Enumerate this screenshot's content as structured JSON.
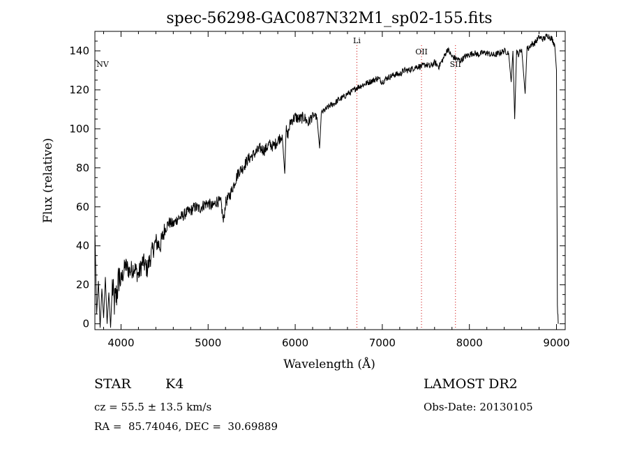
{
  "chart_data": {
    "type": "line",
    "title": "spec-56298-GAC087N32M1_sp02-155.fits",
    "xlabel": "Wavelength (Å)",
    "ylabel": "Flux (relative)",
    "xlim": [
      3700,
      9100
    ],
    "ylim": [
      -3,
      150
    ],
    "x_ticks": [
      4000,
      5000,
      6000,
      7000,
      8000,
      9000
    ],
    "x_tick_labels": [
      "4000",
      "5000",
      "6000",
      "7000",
      "8000",
      "9000"
    ],
    "y_ticks": [
      0,
      20,
      40,
      60,
      80,
      100,
      120,
      140
    ],
    "y_tick_labels": [
      "0",
      "20",
      "40",
      "60",
      "80",
      "100",
      "120",
      "140"
    ],
    "grid": false,
    "line_color": "#000000",
    "marker_color": "#cc0000",
    "line_markers": [
      {
        "label": "NV",
        "wavelength": 3710,
        "dashed": false
      },
      {
        "label": "Li",
        "wavelength": 6708,
        "dashed": true
      },
      {
        "label": "OII",
        "wavelength": 7450,
        "dashed": true
      },
      {
        "label": "SII",
        "wavelength": 7840,
        "dashed": true
      }
    ],
    "series": [
      {
        "x": [
          3700,
          3720,
          3740,
          3760,
          3780,
          3800,
          3820,
          3840,
          3860,
          3880,
          3900,
          3920,
          3950,
          3980,
          4000,
          4050,
          4100,
          4150,
          4200,
          4250,
          4300,
          4350,
          4400,
          4450,
          4500,
          4550,
          4600,
          4650,
          4700,
          4750,
          4800,
          4850,
          4900,
          4950,
          5000,
          5050,
          5100,
          5150,
          5175,
          5200,
          5250,
          5300,
          5350,
          5400,
          5450,
          5500,
          5550,
          5600,
          5650,
          5700,
          5750,
          5800,
          5850,
          5880,
          5895,
          5910,
          5950,
          6000,
          6050,
          6100,
          6150,
          6200,
          6250,
          6280,
          6300,
          6350,
          6400,
          6450,
          6500,
          6550,
          6600,
          6650,
          6700,
          6750,
          6800,
          6850,
          6900,
          6950,
          7000,
          7050,
          7100,
          7150,
          7200,
          7250,
          7300,
          7350,
          7400,
          7450,
          7500,
          7550,
          7600,
          7650,
          7700,
          7750,
          7800,
          7850,
          7900,
          7950,
          8000,
          8050,
          8100,
          8150,
          8200,
          8250,
          8300,
          8350,
          8400,
          8450,
          8480,
          8500,
          8520,
          8542,
          8560,
          8600,
          8640,
          8662,
          8680,
          8700,
          8750,
          8800,
          8850,
          8900,
          8950,
          8980,
          9000,
          9010,
          9020
        ],
        "y": [
          48,
          5,
          22,
          -2,
          18,
          3,
          24,
          0,
          16,
          -2,
          20,
          10,
          15,
          25,
          22,
          30,
          27,
          29,
          25,
          32,
          28,
          36,
          42,
          40,
          48,
          52,
          51,
          54,
          55,
          57,
          58,
          60,
          59,
          61,
          62,
          60,
          63,
          62,
          52,
          62,
          66,
          72,
          78,
          80,
          84,
          86,
          88,
          90,
          89,
          92,
          91,
          94,
          97,
          77,
          100,
          96,
          104,
          106,
          105,
          106,
          103,
          107,
          106,
          90,
          108,
          110,
          112,
          113,
          115,
          116,
          118,
          119,
          121,
          122,
          123,
          124,
          125,
          126,
          124,
          126,
          127,
          128,
          128,
          130,
          130,
          131,
          132,
          132,
          133,
          132,
          134,
          132,
          136,
          141,
          137,
          136,
          135,
          137,
          138,
          139,
          138,
          139,
          139,
          138,
          138,
          139,
          140,
          139,
          124,
          140,
          105,
          140,
          138,
          141,
          118,
          142,
          141,
          143,
          144,
          147,
          146,
          148,
          146,
          143,
          130,
          10,
          0
        ]
      }
    ]
  },
  "footer": {
    "object_type": "STAR",
    "subclass": "K4",
    "survey": "LAMOST DR2",
    "redshift": "cz = 55.5 ± 13.5 km/s",
    "obs_date": "Obs-Date: 20130105",
    "coords": "RA =  85.74046, DEC =  30.69889"
  }
}
